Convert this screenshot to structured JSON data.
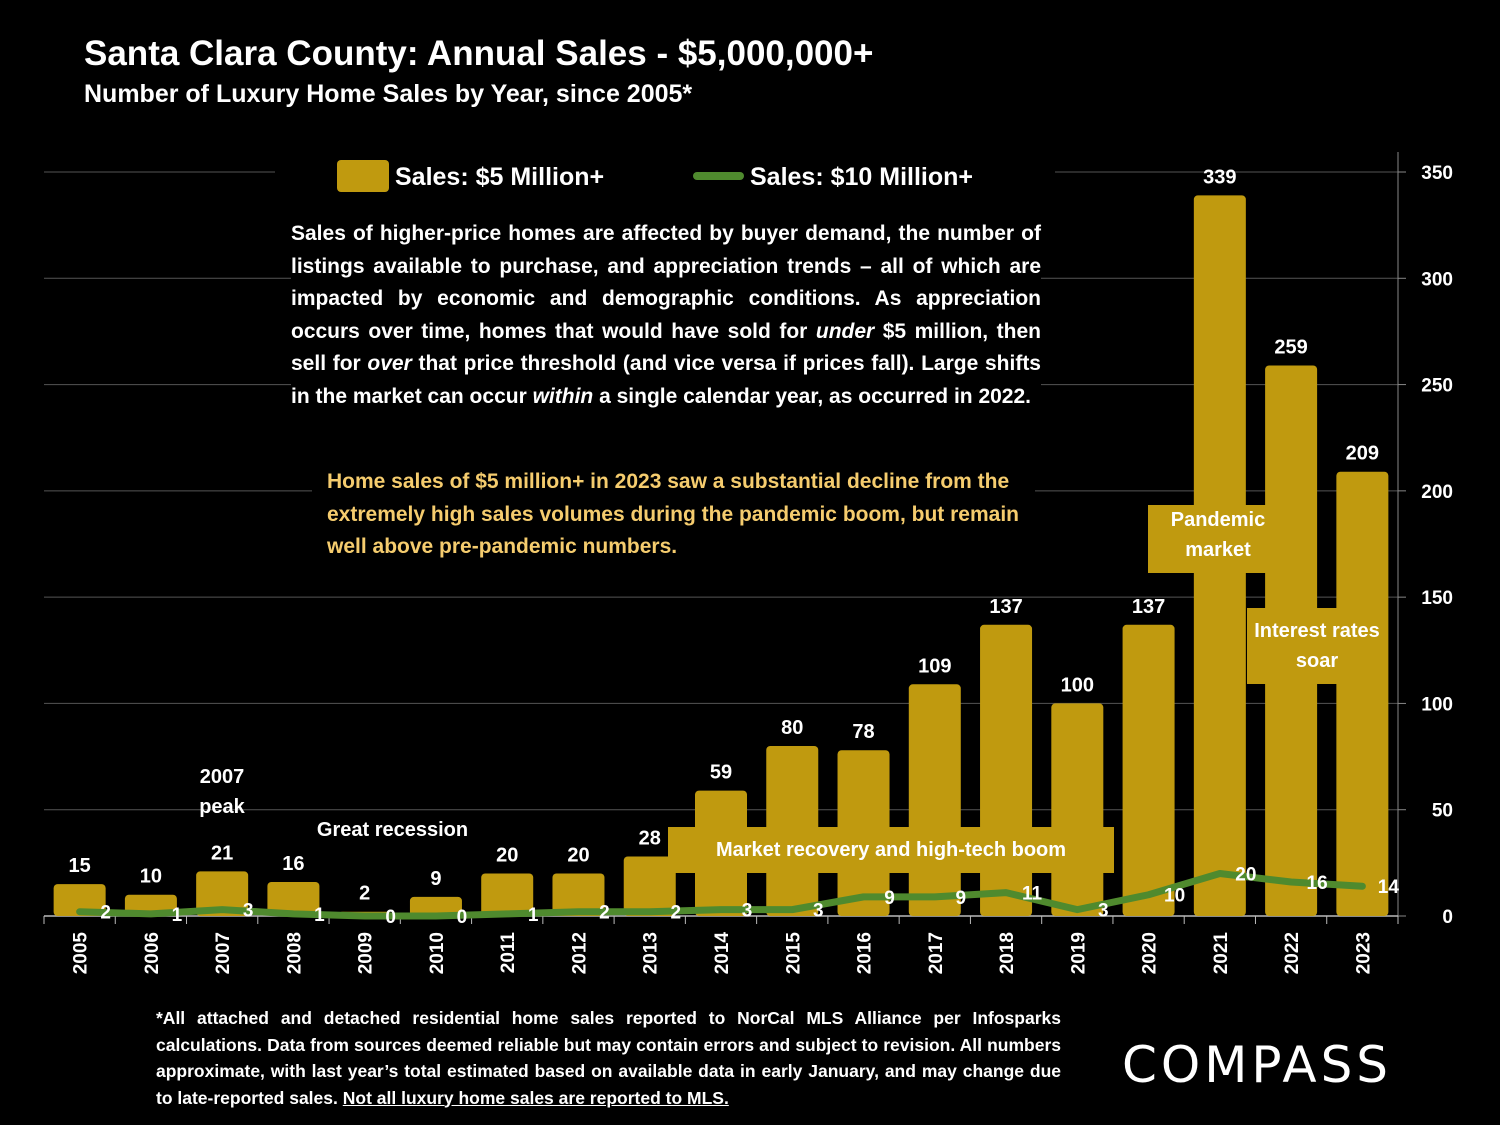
{
  "title": "Santa Clara County:  Annual Sales - $5,000,000+",
  "subtitle": "Number of Luxury Home Sales by Year, since 2005*",
  "legend": {
    "bars": "Sales:  $5 Million+",
    "line": "Sales: $10 Million+"
  },
  "colors": {
    "bar": "#c09a0f",
    "line": "#4f8a2e",
    "highlight_text": "#f5cc6e"
  },
  "paragraph": {
    "p1": "Sales of higher-price homes are affected by buyer demand, the number of listings available to purchase, and appreciation trends – all of which are impacted by economic and demographic conditions. As appreciation occurs over time, homes that would have sold for ",
    "em1": "under",
    "p2": " $5 million, then sell for ",
    "em2": "over",
    "p3": " that price threshold (and vice versa if prices fall). Large shifts in the market can occur ",
    "em3": "within",
    "p4": " a single calendar year, as occurred in 2022.",
    "highlight": "Home sales of $5 million+ in 2023 saw a substantial decline from the extremely high sales volumes during the pandemic boom, but remain well above pre-pandemic numbers."
  },
  "annotations": {
    "peak_2007": "2007 peak",
    "great_recession": "Great recession",
    "market_recovery": "Market recovery and high-tech boom",
    "pandemic": "Pandemic market",
    "interest": "Interest rates soar"
  },
  "footnote": {
    "text": "*All attached and detached residential home sales reported to NorCal MLS Alliance per Infosparks calculations. Data from sources deemed reliable but may contain errors and subject to revision. All numbers approximate, with last year’s total estimated based on available data in early January, and may change due to late-reported sales.",
    "underlined": "Not all luxury home sales are reported to MLS."
  },
  "logo": "COMPASS",
  "chart_data": {
    "type": "bar",
    "title": "Santa Clara County:  Annual Sales - $5,000,000+",
    "categories": [
      "2005",
      "2006",
      "2007",
      "2008",
      "2009",
      "2010",
      "2011",
      "2012",
      "2013",
      "2014",
      "2015",
      "2016",
      "2017",
      "2018",
      "2019",
      "2020",
      "2021",
      "2022",
      "2023"
    ],
    "series": [
      {
        "name": "Sales:  $5 Million+",
        "type": "bar",
        "values": [
          15,
          10,
          21,
          16,
          2,
          9,
          20,
          20,
          28,
          59,
          80,
          78,
          109,
          137,
          100,
          137,
          339,
          259,
          209
        ]
      },
      {
        "name": "Sales: $10 Million+",
        "type": "line",
        "values": [
          2,
          1,
          3,
          1,
          0,
          0,
          1,
          2,
          2,
          3,
          3,
          9,
          9,
          11,
          3,
          10,
          20,
          16,
          14
        ]
      }
    ],
    "yaxis": {
      "side": "right",
      "ylim": [
        0,
        350
      ],
      "ticks": [
        0,
        50,
        100,
        150,
        200,
        250,
        300,
        350
      ]
    },
    "grid": true,
    "legend": "top"
  }
}
